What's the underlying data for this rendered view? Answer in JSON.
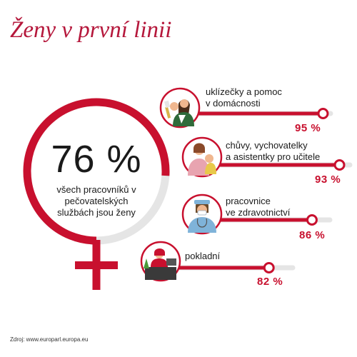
{
  "title": "Ženy v první linii",
  "source": "Zdroj: www.europarl.europa.eu",
  "colors": {
    "accent": "#c8102e",
    "title": "#b5173b",
    "track": "#e5e5e5"
  },
  "chart_data": {
    "type": "bar",
    "headline": {
      "value": 76,
      "value_text": "76 %",
      "label": "všech pracovníků v pečovatelských službách jsou ženy"
    },
    "categories": [
      "uklízečky a pomoc v domácnosti",
      "chůvy, vychovatelky a asistentky pro učitele",
      "pracovnice ve zdravotnictví",
      "pokladní"
    ],
    "values": [
      95,
      93,
      86,
      82
    ],
    "value_labels": [
      "95 %",
      "93 %",
      "86 %",
      "82 %"
    ],
    "label_lines": [
      [
        "uklízečky a pomoc",
        "v domácnosti"
      ],
      [
        "chůvy, vychovatelky",
        "a asistentky pro učitele"
      ],
      [
        "pracovnice",
        "ve zdravotnictví"
      ],
      [
        "pokladní"
      ]
    ],
    "icons": [
      "cleaner-icon",
      "nanny-icon",
      "nurse-icon",
      "cashier-icon"
    ],
    "ylim": [
      0,
      100
    ]
  }
}
